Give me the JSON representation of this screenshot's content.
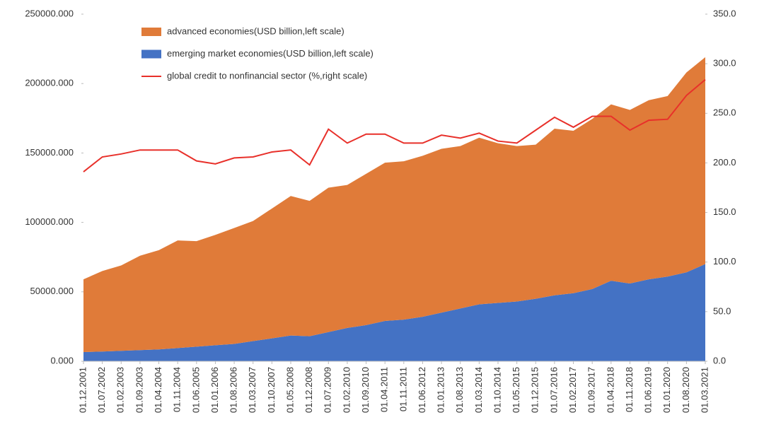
{
  "chart_data": {
    "type": "stacked-area-line",
    "categories": [
      "01.12.2001",
      "01.07.2002",
      "01.02.2003",
      "01.09.2003",
      "01.04.2004",
      "01.11.2004",
      "01.06.2005",
      "01.01.2006",
      "01.08.2006",
      "01.03.2007",
      "01.10.2007",
      "01.05.2008",
      "01.12.2008",
      "01.07.2009",
      "01.02.2010",
      "01.09.2010",
      "01.04.2011",
      "01.11.2011",
      "01.06.2012",
      "01.01.2013",
      "01.08.2013",
      "01.03.2014",
      "01.10.2014",
      "01.05.2015",
      "01.12.2015",
      "01.07.2016",
      "01.02.2017",
      "01.09.2017",
      "01.04.2018",
      "01.11.2018",
      "01.06.2019",
      "01.01.2020",
      "01.08.2020",
      "01.03.2021"
    ],
    "series": [
      {
        "name": "emerging market economies(USD billion,left scale)",
        "color": "#4472c4",
        "kind": "area",
        "values": [
          6600,
          7000,
          7500,
          8000,
          8500,
          9500,
          10500,
          11500,
          12500,
          14500,
          16500,
          18500,
          18000,
          21000,
          24000,
          26000,
          29000,
          30000,
          32000,
          35000,
          38000,
          41000,
          42000,
          43000,
          45000,
          47500,
          49000,
          52000,
          58000,
          56000,
          59000,
          61000,
          64000,
          70000
        ]
      },
      {
        "name": "advanced economies(USD billion,left scale)",
        "color": "#e07b39",
        "kind": "area",
        "values": [
          52400,
          58000,
          61500,
          68000,
          71500,
          77500,
          76000,
          79500,
          83500,
          86500,
          93500,
          100500,
          97500,
          104000,
          103000,
          109000,
          114000,
          114000,
          116000,
          118000,
          117000,
          120000,
          115000,
          112000,
          111000,
          120000,
          117000,
          122500,
          127000,
          125000,
          129000,
          130000,
          144000,
          149000
        ]
      },
      {
        "name": "global credit to nonfinancial sector (%,right scale)",
        "color": "#e8302a",
        "kind": "line",
        "axis": "y2",
        "values": [
          191,
          206,
          209,
          213,
          213,
          213,
          202,
          199,
          205,
          206,
          211,
          213,
          198,
          234,
          220,
          229,
          229,
          220,
          220,
          228,
          225,
          230,
          222,
          220,
          233,
          246,
          236,
          247,
          247,
          233,
          243,
          244,
          268,
          284
        ]
      }
    ],
    "legend_order": [
      1,
      0,
      2
    ],
    "stacked": true,
    "grid": false,
    "ylim": [
      0,
      250000
    ],
    "yticks": [
      {
        "value": 0,
        "label": "0.000"
      },
      {
        "value": 50000,
        "label": "50000.000"
      },
      {
        "value": 100000,
        "label": "100000.000"
      },
      {
        "value": 150000,
        "label": "150000.000"
      },
      {
        "value": 200000,
        "label": "200000.000"
      },
      {
        "value": 250000,
        "label": "250000.000"
      }
    ],
    "y2lim": [
      0,
      350
    ],
    "y2ticks": [
      {
        "value": 0,
        "label": "0.0"
      },
      {
        "value": 50,
        "label": "50.0"
      },
      {
        "value": 100,
        "label": "100.0"
      },
      {
        "value": 150,
        "label": "150.0"
      },
      {
        "value": 200,
        "label": "200.0"
      },
      {
        "value": 250,
        "label": "250.0"
      },
      {
        "value": 300,
        "label": "300.0"
      },
      {
        "value": 350,
        "label": "350.0"
      }
    ]
  }
}
